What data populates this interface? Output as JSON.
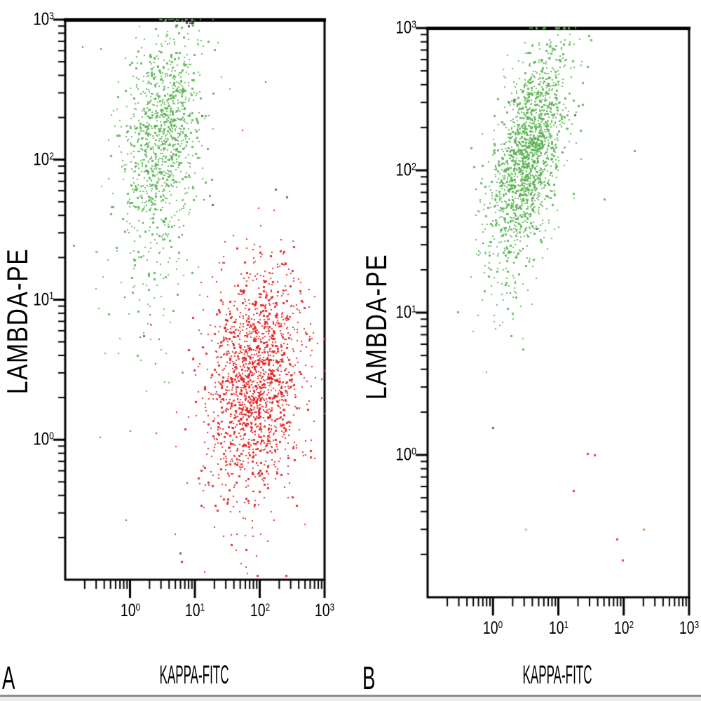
{
  "chart_data": {
    "type": "scatter",
    "description": "Two-panel flow cytometry dual-color dot plots (log-log). Panel A: distinct lambda-positive (green, upper left) and kappa-positive (red, lower right) populations. Panel B: single lambda-positive green population with rare scattered events.",
    "axis_note": "Both axes log scale, plotted range 10^-1 to 10^3, labeled ticks 10^0 to 10^3",
    "panels": [
      {
        "letter": "A",
        "xlabel": "KAPPA-FITC",
        "ylabel": "LAMBDA-PE",
        "x_log_range": [
          -1,
          3
        ],
        "y_log_range": [
          -1,
          3
        ],
        "x_tick_exponents": [
          0,
          1,
          2,
          3
        ],
        "y_tick_exponents": [
          0,
          1,
          2,
          3
        ],
        "clusters": [
          {
            "name": "lambda-positive-population",
            "color": "#5AB452",
            "n": 1050,
            "center_log": [
              0.5,
              2.2
            ],
            "sd_log": [
              0.3,
              0.38
            ],
            "corr": 0.25,
            "approx_center_values": {
              "KAPPA-FITC": 3.2,
              "LAMBDA-PE": 160
            }
          },
          {
            "name": "lambda-low-tail",
            "color": "#5AB452",
            "n": 90,
            "center_log": [
              0.28,
              1.3
            ],
            "sd_log": [
              0.35,
              0.45
            ],
            "corr": 0.1
          },
          {
            "name": "kappa-positive-population",
            "color": "#DD2020",
            "n": 1500,
            "center_log": [
              1.93,
              0.42
            ],
            "sd_log": [
              0.36,
              0.4
            ],
            "corr": 0.18,
            "approx_center_values": {
              "KAPPA-FITC": 85,
              "LAMBDA-PE": 2.6
            }
          },
          {
            "name": "kappa-halo",
            "color": "#DD2020",
            "n": 110,
            "center_log": [
              1.82,
              0.1
            ],
            "sd_log": [
              0.55,
              0.58
            ],
            "corr": 0.1
          },
          {
            "name": "debris-scatter",
            "color": "#5d5d5d",
            "n": 38,
            "type": "uniform",
            "x_range": [
              -0.9,
              2.85
            ],
            "y_range": [
              -0.85,
              2.9
            ]
          },
          {
            "name": "top-edge-pileup",
            "color": "#3f3f3f",
            "n": 16,
            "type": "uniform",
            "x_range": [
              0.72,
              1.02
            ],
            "y_range": [
              2.95,
              3.0
            ]
          }
        ],
        "points": []
      },
      {
        "letter": "B",
        "xlabel": "KAPPA-FITC",
        "ylabel": "LAMBDA-PE",
        "x_log_range": [
          -1,
          3
        ],
        "y_log_range": [
          -1,
          3
        ],
        "x_tick_exponents": [
          0,
          1,
          2,
          3
        ],
        "y_tick_exponents": [
          0,
          1,
          2,
          3
        ],
        "clusters": [
          {
            "name": "lambda-positive-population",
            "color": "#5AB452",
            "n": 1600,
            "center_log": [
              0.55,
              2.13
            ],
            "sd_log": [
              0.3,
              0.38
            ],
            "corr": 0.55,
            "approx_center_values": {
              "KAPPA-FITC": 3.5,
              "LAMBDA-PE": 135
            }
          },
          {
            "name": "lambda-low-tail",
            "color": "#5AB452",
            "n": 70,
            "center_log": [
              0.3,
              1.45
            ],
            "sd_log": [
              0.3,
              0.4
            ],
            "corr": 0.3
          },
          {
            "name": "debris-scatter",
            "color": "#5f5f5f",
            "n": 10,
            "type": "uniform",
            "x_range": [
              -0.6,
              1.7
            ],
            "y_range": [
              0.9,
              2.9
            ]
          }
        ],
        "points": [
          {
            "x": 2.16,
            "y": 2.14,
            "color": "#5AB452"
          },
          {
            "x": 1.7,
            "y": 1.8,
            "color": "#5AB452"
          },
          {
            "x": 0.0,
            "y": 0.19,
            "color": "#555555"
          },
          {
            "x": 1.45,
            "y": 0.01,
            "color": "#cc3b2b"
          },
          {
            "x": 1.55,
            "y": 0.0,
            "color": "#cc3b2b"
          },
          {
            "x": 1.23,
            "y": -0.25,
            "color": "#cc3b2b"
          },
          {
            "x": 0.5,
            "y": -0.52,
            "color": "#c9b6a8"
          },
          {
            "x": 2.3,
            "y": -0.52,
            "color": "#d9813f"
          },
          {
            "x": 1.9,
            "y": -0.59,
            "color": "#cc3b2b"
          },
          {
            "x": 1.98,
            "y": -0.74,
            "color": "#cc3b2b"
          }
        ]
      }
    ],
    "colors": {
      "lambda_population": "#5AB452",
      "kappa_population": "#DD2020",
      "axis": "#000000",
      "bottom_bar_line": "#8d8d8d"
    }
  }
}
